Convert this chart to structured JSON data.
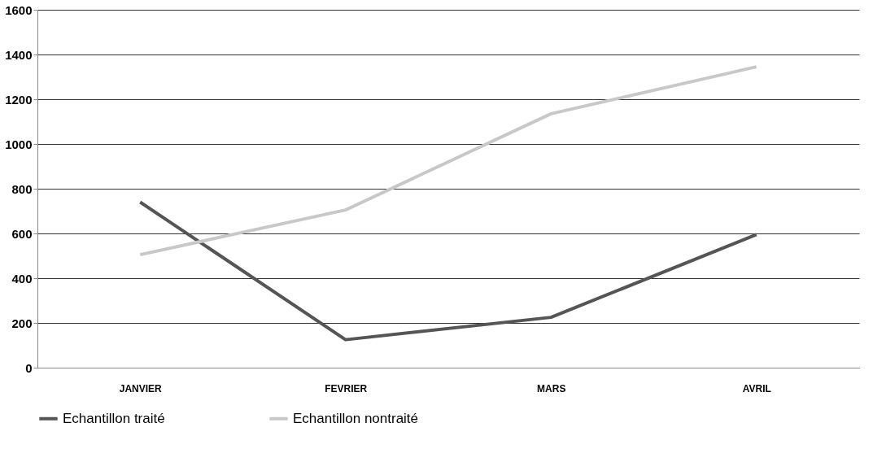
{
  "chart_data": {
    "type": "line",
    "categories": [
      "JANVIER",
      "FEVRIER",
      "MARS",
      "AVRIL"
    ],
    "series": [
      {
        "name": "Echantillon traité",
        "color": "#555555",
        "values": [
          740,
          125,
          225,
          595
        ]
      },
      {
        "name": "Echantillon nontraité",
        "color": "#c8c8c8",
        "values": [
          505,
          705,
          1135,
          1345
        ]
      }
    ],
    "ylim": [
      0,
      1600
    ],
    "yticks": [
      0,
      200,
      400,
      600,
      800,
      1000,
      1200,
      1400,
      1600
    ],
    "grid": "y",
    "legend": "bottom",
    "marker": "none",
    "line_style": "solid"
  }
}
